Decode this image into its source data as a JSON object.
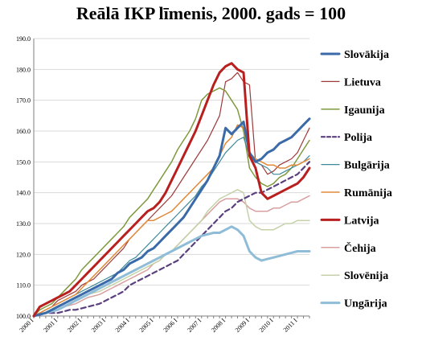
{
  "chart_data": {
    "type": "line",
    "title": "Reālā IKP līmenis, 2000. gads = 100",
    "xlabel": "",
    "ylabel": "",
    "ylim": [
      100,
      190
    ],
    "yticks": [
      "100.0",
      "110.0",
      "120.0",
      "130.0",
      "140.0",
      "150.0",
      "160.0",
      "170.0",
      "180.0",
      "190.0"
    ],
    "xticks": [
      "2000 I",
      "2001 I",
      "2002 I",
      "2003 I",
      "2004 I",
      "2005 I",
      "2006 I",
      "2007 I",
      "2008 I",
      "2009 I",
      "2010 I",
      "2011 I"
    ],
    "grid": true,
    "legend_position": "right",
    "x": [
      "2000-I",
      "2000-II",
      "2000-III",
      "2000-IV",
      "2001-I",
      "2001-II",
      "2001-III",
      "2001-IV",
      "2002-I",
      "2002-II",
      "2002-III",
      "2002-IV",
      "2003-I",
      "2003-II",
      "2003-III",
      "2003-IV",
      "2004-I",
      "2004-II",
      "2004-III",
      "2004-IV",
      "2005-I",
      "2005-II",
      "2005-III",
      "2005-IV",
      "2006-I",
      "2006-II",
      "2006-III",
      "2006-IV",
      "2007-I",
      "2007-II",
      "2007-III",
      "2007-IV",
      "2008-I",
      "2008-II",
      "2008-III",
      "2008-IV",
      "2009-I",
      "2009-II",
      "2009-III",
      "2009-IV",
      "2010-I",
      "2010-II",
      "2010-III",
      "2010-IV",
      "2011-I",
      "2011-II",
      "2011-III"
    ],
    "series": [
      {
        "name": "Slovākija",
        "color": "#3b6aa8",
        "width": 3,
        "dash": "",
        "values": [
          100,
          100.5,
          101,
          102,
          103,
          104,
          105,
          106,
          107,
          108,
          109,
          110,
          111,
          112,
          114,
          115,
          117,
          118,
          119,
          121,
          122,
          124,
          126,
          128,
          130,
          132,
          135,
          138,
          141,
          144,
          148,
          152,
          161,
          159,
          161,
          163,
          153,
          150,
          151,
          153,
          154,
          156,
          157,
          158,
          160,
          162,
          164
        ]
      },
      {
        "name": "Lietuva",
        "color": "#9e3a3a",
        "width": 1.2,
        "dash": "",
        "values": [
          100,
          101,
          102,
          103,
          105,
          106,
          107,
          108,
          110,
          111,
          112,
          114,
          116,
          118,
          120,
          122,
          125,
          127,
          129,
          131,
          133,
          135,
          137,
          139,
          142,
          145,
          148,
          151,
          154,
          157,
          161,
          165,
          176,
          177,
          179,
          176,
          175,
          150,
          149,
          146,
          147,
          149,
          150,
          151,
          153,
          157,
          161
        ]
      },
      {
        "name": "Igaunija",
        "color": "#7f9a3e",
        "width": 1.5,
        "dash": "",
        "values": [
          100,
          102,
          103,
          104,
          106,
          108,
          110,
          112,
          115,
          117,
          119,
          121,
          123,
          125,
          127,
          129,
          132,
          134,
          136,
          138,
          141,
          144,
          147,
          150,
          154,
          157,
          160,
          164,
          170,
          172,
          173,
          174,
          173,
          170,
          167,
          160,
          148,
          145,
          143,
          142,
          143,
          145,
          146,
          148,
          151,
          154,
          157
        ]
      },
      {
        "name": "Polija",
        "color": "#5a3f7f",
        "width": 2.2,
        "dash": "6,4",
        "values": [
          100,
          100.5,
          101,
          101,
          101,
          101.5,
          102,
          102,
          102.5,
          103,
          103.5,
          104,
          105,
          106,
          107,
          108,
          110,
          111,
          112,
          113,
          114,
          115,
          116,
          117,
          118,
          120,
          122,
          124,
          126,
          128,
          130,
          132,
          134,
          135,
          137,
          138,
          139,
          140,
          140,
          141,
          142,
          143,
          144,
          145,
          146,
          148,
          150
        ]
      },
      {
        "name": "Bulgārija",
        "color": "#3f8a9a",
        "width": 1.2,
        "dash": "",
        "values": [
          100,
          101,
          102,
          103,
          104,
          105,
          106,
          107,
          108,
          109,
          110,
          111,
          112,
          113,
          114,
          116,
          118,
          119,
          121,
          123,
          125,
          127,
          129,
          131,
          133,
          135,
          137,
          139,
          142,
          144,
          147,
          150,
          153,
          155,
          157,
          158,
          152,
          150,
          149,
          148,
          146,
          146,
          147,
          148,
          149,
          150,
          152
        ]
      },
      {
        "name": "Rumānija",
        "color": "#e08a3a",
        "width": 1.5,
        "dash": "",
        "values": [
          100,
          101,
          102,
          103,
          104,
          105,
          106,
          107,
          109,
          111,
          113,
          115,
          117,
          119,
          121,
          123,
          125,
          127,
          129,
          131,
          131,
          132,
          133,
          134,
          136,
          138,
          140,
          142,
          144,
          146,
          148,
          152,
          156,
          158,
          162,
          161,
          153,
          151,
          150,
          149,
          149,
          148,
          148,
          149,
          149,
          150,
          151
        ]
      },
      {
        "name": "Latvija",
        "color": "#b81f1f",
        "width": 3,
        "dash": "",
        "values": [
          100,
          103,
          104,
          105,
          106,
          107,
          108,
          110,
          112,
          114,
          116,
          118,
          120,
          122,
          124,
          126,
          128,
          130,
          132,
          134,
          135,
          137,
          140,
          144,
          148,
          152,
          156,
          160,
          165,
          170,
          175,
          179,
          181,
          182,
          180,
          179,
          152,
          148,
          140,
          138,
          139,
          140,
          141,
          142,
          143,
          145,
          148
        ]
      },
      {
        "name": "Čehija",
        "color": "#d9a0a0",
        "width": 1.5,
        "dash": "",
        "values": [
          100,
          100.5,
          101,
          101.5,
          102,
          103,
          103.5,
          104,
          105,
          106,
          106.5,
          107,
          108,
          109,
          110,
          111,
          112,
          113,
          114,
          115,
          117,
          118,
          120,
          121,
          123,
          125,
          127,
          129,
          131,
          133,
          135,
          137,
          138,
          138,
          138,
          137,
          135,
          134,
          134,
          134,
          135,
          135,
          136,
          137,
          137,
          138,
          139
        ]
      },
      {
        "name": "Slovēnija",
        "color": "#c4d2a8",
        "width": 1.5,
        "dash": "",
        "values": [
          100,
          100.5,
          101,
          101.5,
          102,
          103,
          104,
          105,
          106,
          107,
          107.5,
          108,
          109,
          110,
          111,
          112,
          113,
          114,
          115,
          116,
          117,
          118,
          120,
          121,
          123,
          125,
          127,
          129,
          131,
          134,
          136,
          138,
          139,
          140,
          141,
          140,
          131,
          129,
          128,
          128,
          128,
          129,
          130,
          130,
          131,
          131,
          131
        ]
      },
      {
        "name": "Ungārija",
        "color": "#8fbcd6",
        "width": 3,
        "dash": "",
        "values": [
          100,
          100.5,
          101,
          101.5,
          102,
          103,
          104,
          105,
          106,
          107,
          108,
          109,
          110,
          111,
          112,
          113,
          114,
          115,
          116,
          117,
          118,
          119,
          120,
          121,
          122,
          123,
          124,
          125,
          126,
          126.5,
          127,
          127,
          128,
          129,
          128,
          126,
          121,
          119,
          118,
          118.5,
          119,
          119.5,
          120,
          120.5,
          121,
          121,
          121
        ]
      }
    ]
  }
}
